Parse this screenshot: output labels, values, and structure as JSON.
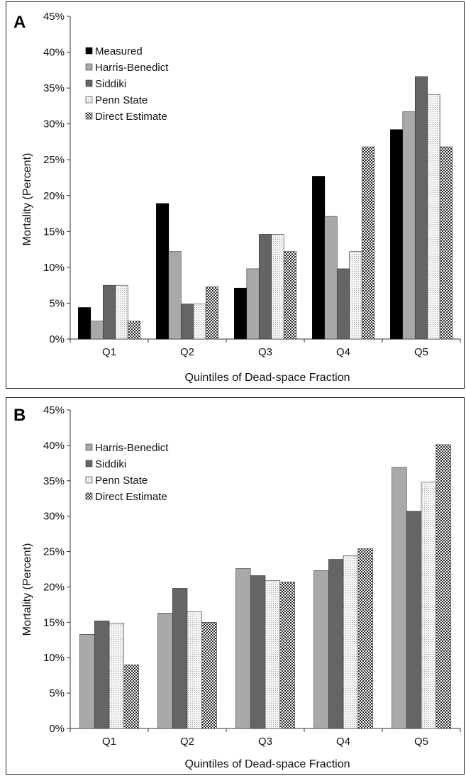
{
  "chart_data": [
    {
      "type": "bar",
      "panel_label": "A",
      "categories": [
        "Q1",
        "Q2",
        "Q3",
        "Q4",
        "Q5"
      ],
      "xlabel": "Quintiles of Dead-space Fraction",
      "ylabel": "Mortality (Percent)",
      "ylim": [
        0,
        45
      ],
      "yticks": [
        "0%",
        "5%",
        "10%",
        "15%",
        "20%",
        "25%",
        "30%",
        "35%",
        "40%",
        "45%"
      ],
      "grid": false,
      "legend_position": "top-left",
      "series": [
        {
          "name": "Measured",
          "values": [
            4.4,
            18.9,
            7.1,
            22.7,
            29.2
          ],
          "color": "#000000",
          "pattern": "solid"
        },
        {
          "name": "Harris-Benedict",
          "values": [
            2.5,
            12.2,
            9.8,
            17.1,
            31.7
          ],
          "color": "#a9a9a9",
          "pattern": "solid"
        },
        {
          "name": "Siddiki",
          "values": [
            7.5,
            4.9,
            14.6,
            9.8,
            36.6
          ],
          "color": "#656565",
          "pattern": "solid"
        },
        {
          "name": "Penn State",
          "values": [
            7.5,
            4.9,
            14.6,
            12.2,
            34.1
          ],
          "color": "#f2f2f2",
          "pattern": "dots"
        },
        {
          "name": "Direct Estimate",
          "values": [
            2.5,
            7.3,
            12.2,
            26.8,
            26.8
          ],
          "color": "#7a7a7a",
          "pattern": "checker"
        }
      ]
    },
    {
      "type": "bar",
      "panel_label": "B",
      "categories": [
        "Q1",
        "Q2",
        "Q3",
        "Q4",
        "Q5"
      ],
      "xlabel": "Quintiles of Dead-space Fraction",
      "ylabel": "Mortality (Percent)",
      "ylim": [
        0,
        45
      ],
      "yticks": [
        "0%",
        "5%",
        "10%",
        "15%",
        "20%",
        "25%",
        "30%",
        "35%",
        "40%",
        "45%"
      ],
      "grid": false,
      "legend_position": "top-left",
      "series": [
        {
          "name": "Harris-Benedict",
          "values": [
            13.3,
            16.3,
            22.6,
            22.3,
            36.9
          ],
          "color": "#a9a9a9",
          "pattern": "solid"
        },
        {
          "name": "Siddiki",
          "values": [
            15.2,
            19.8,
            21.6,
            23.9,
            30.7
          ],
          "color": "#656565",
          "pattern": "solid"
        },
        {
          "name": "Penn State",
          "values": [
            14.9,
            16.5,
            20.9,
            24.4,
            34.8
          ],
          "color": "#f2f2f2",
          "pattern": "dots"
        },
        {
          "name": "Direct Estimate",
          "values": [
            9.0,
            15.0,
            20.7,
            25.4,
            40.1
          ],
          "color": "#7a7a7a",
          "pattern": "checker"
        }
      ]
    }
  ]
}
